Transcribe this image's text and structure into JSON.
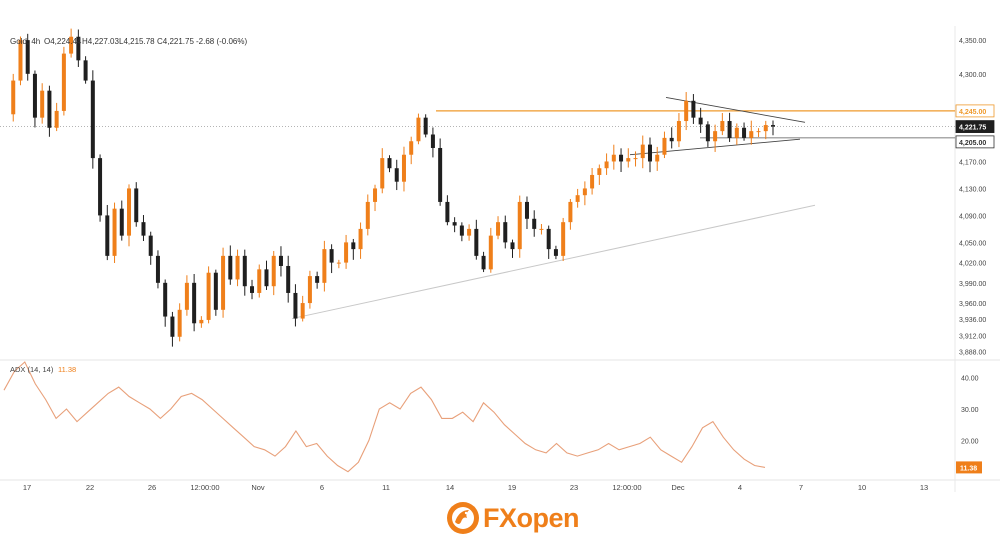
{
  "header": {
    "symbol": "Gold, 4h",
    "open": "O4,224.44",
    "high": "H4,227.03",
    "low": "L4,215.78",
    "close": "C4,221.75",
    "change": "-2.68 (-0.06%)"
  },
  "price_ticks": [
    "4,350.00",
    "4,300.00",
    "4,245.00",
    "4,205.00",
    "4,170.00",
    "4,130.00",
    "4,090.00",
    "4,050.00",
    "4,020.00",
    "3,990.00",
    "3,960.00",
    "3,936.00",
    "3,912.00",
    "3,888.00"
  ],
  "price_badges": {
    "resistance": "4,245.00",
    "current": "4,221.75",
    "support": "4,205.00",
    "adx": "11.38"
  },
  "adx": {
    "label": "ADX (14, 14)",
    "value": "11.38",
    "ticks": [
      "40.00",
      "30.00",
      "20.00"
    ]
  },
  "x_ticks": [
    "17",
    "22",
    "26",
    "12:00:00",
    "Nov",
    "6",
    "11",
    "14",
    "19",
    "23",
    "12:00:00",
    "Dec",
    "4",
    "7",
    "10",
    "13"
  ],
  "colors": {
    "up": "#ef7f1a",
    "down": "#1f1f1f",
    "level": "#ef9a2c",
    "adx_line": "#e8a07a",
    "badge_dark": "#1f1f1f",
    "trend": "#c8c8c8"
  },
  "logo": {
    "text": "FXopen"
  },
  "chart_data": {
    "type": "candlestick",
    "title": "Gold, 4h",
    "ylim": [
      3880,
      4365
    ],
    "levels": [
      4245.0,
      4205.0
    ],
    "current_price": 4221.75,
    "price_path": [
      4240,
      4290,
      4350,
      4300,
      4235,
      4275,
      4220,
      4245,
      4330,
      4355,
      4320,
      4290,
      4175,
      4090,
      4030,
      4100,
      4060,
      4130,
      4080,
      4060,
      4030,
      3990,
      3940,
      3910,
      3950,
      3990,
      3930,
      3935,
      4005,
      3950,
      4030,
      3995,
      4030,
      3985,
      3975,
      4010,
      3985,
      4030,
      4015,
      3975,
      3937,
      3960,
      4000,
      3990,
      4040,
      4020,
      4020,
      4050,
      4040,
      4070,
      4110,
      4130,
      4175,
      4160,
      4140,
      4180,
      4200,
      4235,
      4210,
      4190,
      4110,
      4080,
      4075,
      4060,
      4070,
      4030,
      4010,
      4060,
      4080,
      4050,
      4040,
      4110,
      4085,
      4070,
      4070,
      4040,
      4030,
      4080,
      4110,
      4120,
      4130,
      4150,
      4160,
      4170,
      4180,
      4170,
      4175,
      4175,
      4195,
      4170,
      4180,
      4205,
      4200,
      4230,
      4260,
      4235,
      4225,
      4200,
      4215,
      4230,
      4205,
      4220,
      4205,
      4215,
      4215,
      4224,
      4221.75
    ],
    "adx_range": [
      8,
      45
    ],
    "adx_path": [
      36,
      42,
      45,
      38,
      33,
      27,
      30,
      26,
      29,
      32,
      35,
      37,
      34,
      32,
      30,
      27,
      30,
      34,
      35,
      33,
      30,
      27,
      24,
      21,
      18,
      17,
      15,
      18,
      23,
      18,
      19,
      15,
      12,
      10,
      13,
      20,
      30,
      32,
      30,
      35,
      37,
      33,
      27,
      27,
      29,
      26,
      32,
      29,
      25,
      22,
      19,
      17,
      16,
      19,
      16,
      15,
      16,
      17,
      19,
      17,
      18,
      19,
      21,
      17,
      15,
      13,
      18,
      24,
      26,
      21,
      17,
      14,
      12,
      11.38
    ],
    "x_ticks": [
      "17",
      "22",
      "26",
      "12:00:00",
      "Nov",
      "6",
      "11",
      "14",
      "19",
      "23",
      "12:00:00",
      "Dec",
      "4",
      "7",
      "10",
      "13"
    ]
  }
}
